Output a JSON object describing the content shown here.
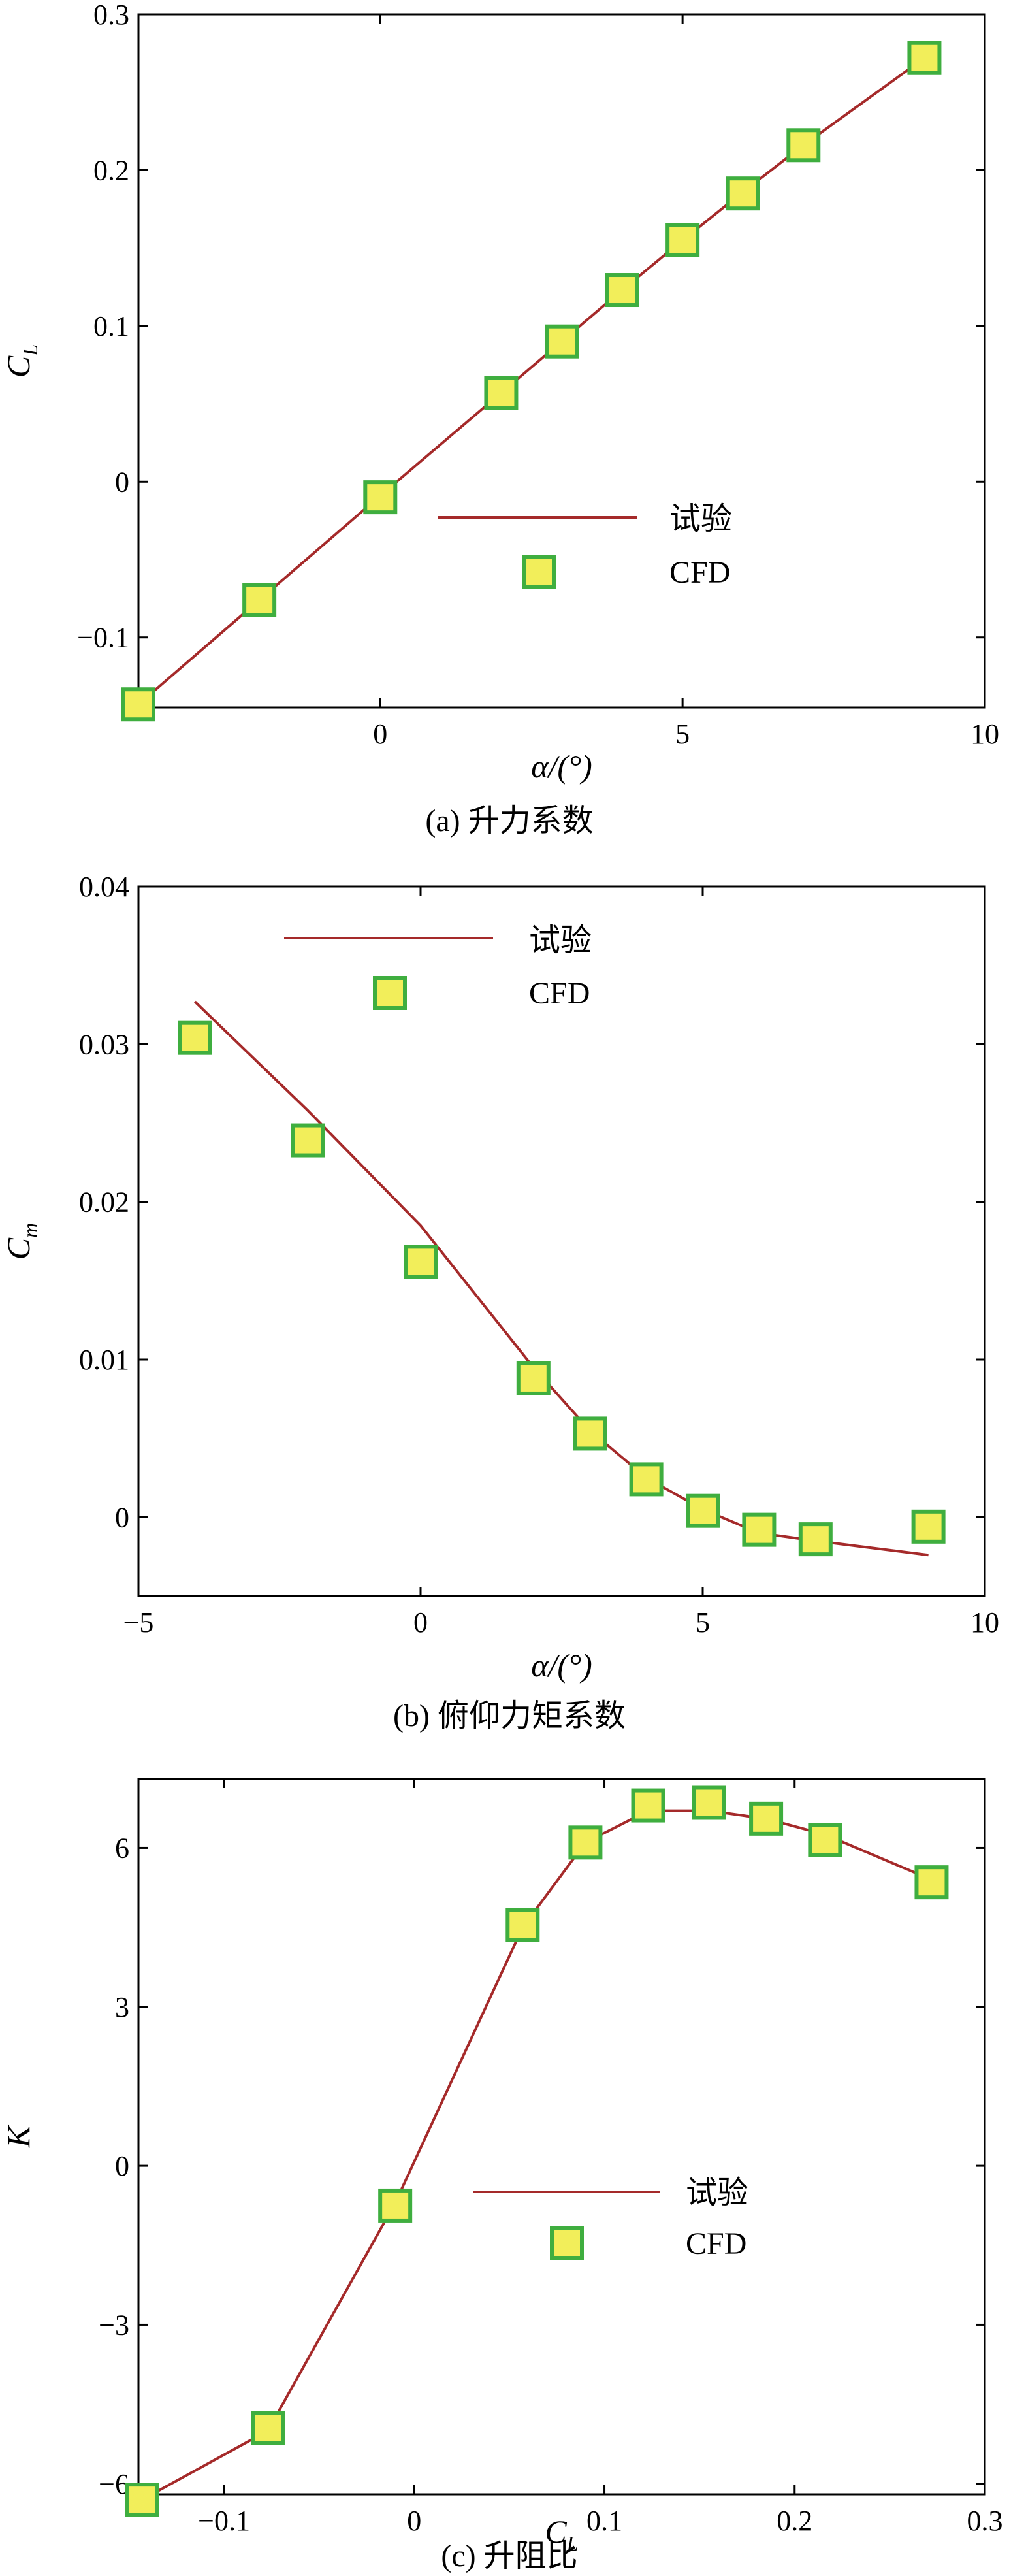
{
  "chart_data": [
    {
      "type": "line",
      "caption": "(a) 升力系数",
      "xlabel": "α/(°)",
      "ylabel": {
        "main": "C",
        "sub": "L"
      },
      "xlim": [
        -4,
        10
      ],
      "ylim": [
        -0.145,
        0.3
      ],
      "xticks": [
        0,
        5,
        10
      ],
      "xtick_labels": [
        "0",
        "5",
        "10"
      ],
      "yticks": [
        -0.1,
        0,
        0.1,
        0.2,
        0.3
      ],
      "ytick_labels": [
        "−0.1",
        "0",
        "0.1",
        "0.2",
        "0.3"
      ],
      "legend": {
        "position": "center-right",
        "line_label": "试验",
        "marker_label": "CFD"
      },
      "series": [
        {
          "name": "试验",
          "kind": "line",
          "color": "#a52a2a",
          "x": [
            -4,
            -2,
            0,
            2,
            3,
            4,
            5,
            6,
            7,
            9
          ],
          "y": [
            -0.143,
            -0.076,
            -0.009,
            0.057,
            0.09,
            0.123,
            0.155,
            0.186,
            0.216,
            0.272
          ]
        },
        {
          "name": "CFD",
          "kind": "marker",
          "fill": "#f2ee5a",
          "edge": "#3fae3f",
          "x": [
            -4,
            -2,
            0,
            2,
            3,
            4,
            5,
            6,
            7,
            9
          ],
          "y": [
            -0.143,
            -0.076,
            -0.01,
            0.057,
            0.09,
            0.123,
            0.155,
            0.185,
            0.216,
            0.272
          ]
        }
      ]
    },
    {
      "type": "line",
      "caption": "(b) 俯仰力矩系数",
      "xlabel": "α/(°)",
      "ylabel": {
        "main": "C",
        "sub": "m"
      },
      "xlim": [
        -5,
        10
      ],
      "ylim": [
        -0.005,
        0.04
      ],
      "xticks": [
        -5,
        0,
        5,
        10
      ],
      "xtick_labels": [
        "−5",
        "0",
        "5",
        "10"
      ],
      "yticks": [
        0,
        0.01,
        0.02,
        0.03,
        0.04
      ],
      "ytick_labels": [
        "0",
        "0.01",
        "0.02",
        "0.03",
        "0.04"
      ],
      "legend": {
        "position": "top-left",
        "line_label": "试验",
        "marker_label": "CFD"
      },
      "series": [
        {
          "name": "试验",
          "kind": "line",
          "color": "#a52a2a",
          "x": [
            -4,
            -2,
            0,
            2,
            3,
            4,
            5,
            6,
            7,
            9
          ],
          "y": [
            0.0327,
            0.0258,
            0.0185,
            0.0095,
            0.0055,
            0.0025,
            0.0005,
            -0.001,
            -0.0015,
            -0.0024
          ]
        },
        {
          "name": "CFD",
          "kind": "marker",
          "fill": "#f2ee5a",
          "edge": "#3fae3f",
          "x": [
            -4,
            -2,
            0,
            2,
            3,
            4,
            5,
            6,
            7,
            9
          ],
          "y": [
            0.0304,
            0.0239,
            0.0162,
            0.0088,
            0.0053,
            0.0024,
            0.0004,
            -0.0008,
            -0.0014,
            -0.0006
          ]
        }
      ]
    },
    {
      "type": "line",
      "caption": "(c) 升阻比",
      "xlabel": {
        "main": "C",
        "sub": "L"
      },
      "ylabel": "K",
      "xlim": [
        -0.145,
        0.3
      ],
      "ylim": [
        -6.2,
        7.3
      ],
      "xticks": [
        -0.1,
        0,
        0.1,
        0.2,
        0.3
      ],
      "xtick_labels": [
        "−0.1",
        "0",
        "0.1",
        "0.2",
        "0.3"
      ],
      "yticks": [
        -6,
        -3,
        0,
        3,
        6
      ],
      "ytick_labels": [
        "−6",
        "−3",
        "0",
        "3",
        "6"
      ],
      "legend": {
        "position": "center-right",
        "line_label": "试验",
        "marker_label": "CFD"
      },
      "series": [
        {
          "name": "试验",
          "kind": "line",
          "color": "#a52a2a",
          "x": [
            -0.143,
            -0.077,
            -0.01,
            0.057,
            0.09,
            0.123,
            0.155,
            0.185,
            0.216,
            0.272
          ],
          "y": [
            -6.3,
            -5.0,
            -0.7,
            4.5,
            6.1,
            6.7,
            6.7,
            6.55,
            6.25,
            5.4
          ]
        },
        {
          "name": "CFD",
          "kind": "marker",
          "fill": "#f2ee5a",
          "edge": "#3fae3f",
          "x": [
            -0.143,
            -0.077,
            -0.01,
            0.057,
            0.09,
            0.123,
            0.155,
            0.185,
            0.216,
            0.272
          ],
          "y": [
            -6.3,
            -4.95,
            -0.75,
            4.55,
            6.1,
            6.8,
            6.85,
            6.55,
            6.15,
            5.35
          ]
        }
      ]
    }
  ]
}
